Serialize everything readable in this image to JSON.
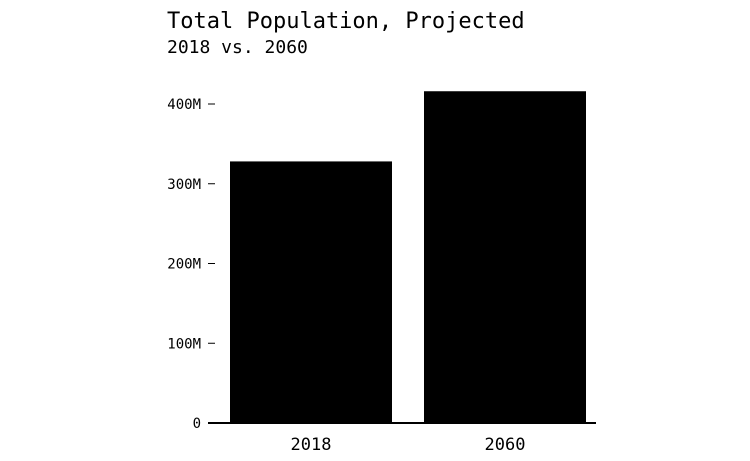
{
  "chart_data": {
    "type": "bar",
    "title": "Total Population, Projected",
    "subtitle": "2018 vs. 2060",
    "categories": [
      "2018",
      "2060"
    ],
    "values": [
      328,
      416
    ],
    "unit": "millions",
    "xlabel": "",
    "ylabel": "",
    "ylim": [
      0,
      440
    ],
    "yticks": [
      0,
      100,
      200,
      300,
      400
    ],
    "ytick_labels": [
      "0",
      "100M",
      "200M",
      "300M",
      "400M"
    ],
    "bar_color": "#000000",
    "grid": false,
    "legend": "none"
  }
}
